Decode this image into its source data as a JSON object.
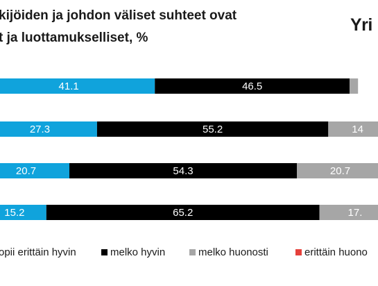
{
  "title_line1": "kijöiden ja johdon väliset suhteet ovat",
  "title_line2": "t ja luottamukselliset, %",
  "logo": "Yri",
  "chart_data": {
    "type": "bar",
    "orientation": "horizontal",
    "stacked": true,
    "categories": [
      "",
      "",
      "",
      ""
    ],
    "series": [
      {
        "name": "opii erittäin hyvin",
        "color": "#10a3dc",
        "values": [
          41.1,
          27.3,
          20.7,
          15.2
        ],
        "labels": [
          "41.1",
          "27.3",
          "20.7",
          "15.2"
        ]
      },
      {
        "name": "melko hyvin",
        "color": "#000000",
        "values": [
          46.5,
          55.2,
          54.3,
          65.2
        ],
        "labels": [
          "46.5",
          "55.2",
          "54.3",
          "65.2"
        ]
      },
      {
        "name": "melko huonosti",
        "color": "#a6a6a6",
        "values": [
          2.0,
          14.0,
          20.7,
          17.0
        ],
        "labels": [
          "",
          "14",
          "20.7",
          "17."
        ]
      },
      {
        "name": "erittäin huono",
        "color": "#e5413b",
        "values": [
          0,
          0,
          0,
          0
        ],
        "labels": [
          "",
          "",
          "",
          ""
        ]
      }
    ],
    "xlim": [
      0,
      100
    ],
    "legend_position": "bottom"
  }
}
